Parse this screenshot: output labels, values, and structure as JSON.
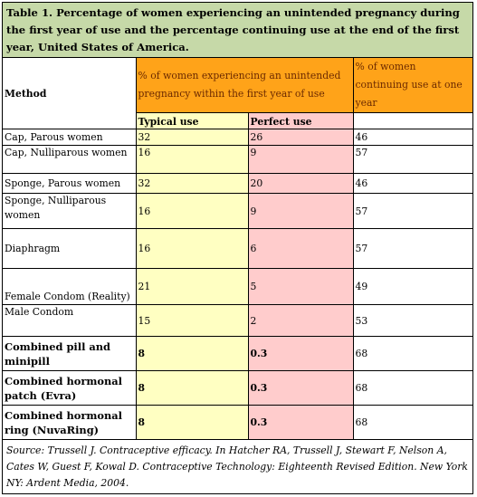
{
  "title": "Table 1. Percentage of women experiencing an unintended pregnancy during the first year of use and the percentage continuing use at the end of the first year, United States of America.",
  "header": {
    "method": "Method",
    "pct_pregnancy": "% of women experiencing an unintended pregnancy within the first year of use",
    "pct_continuing": "% of women continuing use at one year",
    "typical": "Typical use",
    "perfect": "Perfect use"
  },
  "rows": [
    {
      "method": "Cap, Parous women",
      "typical": "32",
      "perfect": "26",
      "continuing": "46"
    },
    {
      "method": "Cap, Nulliparous women",
      "typical": "16",
      "perfect": "9",
      "continuing": "57"
    },
    {
      "method": "Sponge, Parous women",
      "typical": "32",
      "perfect": "20",
      "continuing": "46"
    },
    {
      "method": "Sponge, Nulliparous women",
      "typical": "16",
      "perfect": "9",
      "continuing": "57"
    },
    {
      "method": "Diaphragm",
      "typical": "16",
      "perfect": "6",
      "continuing": "57"
    },
    {
      "method": "Female Condom (Reality)",
      "typical": "21",
      "perfect": "5",
      "continuing": "49"
    },
    {
      "method": "Male Condom",
      "typical": "15",
      "perfect": "2",
      "continuing": "53"
    },
    {
      "method": "Combined pill and minipill",
      "typical": "8",
      "perfect": "0.3",
      "continuing": "68"
    },
    {
      "method": "Combined hormonal patch (Evra)",
      "typical": "8",
      "perfect": "0.3",
      "continuing": "68"
    },
    {
      "method": "Combined hormonal ring (NuvaRing)",
      "typical": "8",
      "perfect": "0.3",
      "continuing": "68"
    }
  ],
  "source": "Source: Trussell J. Contraceptive efficacy. In Hatcher RA, Trussell J, Stewart F, Nelson A, Cates W, Guest F, Kowal D. Contraceptive Technology: Eighteenth Revised Edition. New York NY: Ardent Media, 2004."
}
